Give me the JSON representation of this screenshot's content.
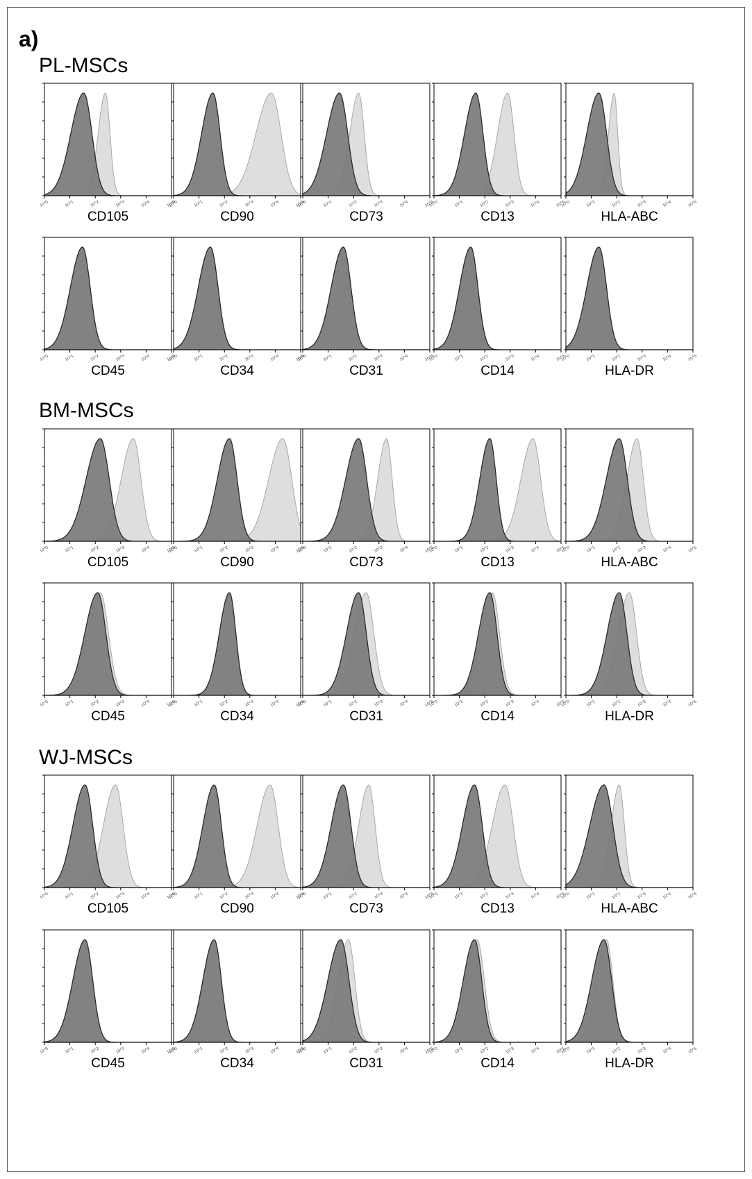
{
  "figure": {
    "panel_label": "a)",
    "tick_labels": [
      "10^0",
      "10^1",
      "10^2",
      "10^3",
      "10^4",
      "10^5"
    ],
    "colors": {
      "isotype": "#7a7a7a",
      "marker": "#dcdcdc",
      "isotype_edge": "#2a2a2a",
      "marker_edge": "#a8a8a8",
      "frame": "#000000"
    }
  },
  "chart_data": [
    {
      "type": "histogram-overlay",
      "group": "PL-MSCs",
      "x_axis": "log10 fluorescence",
      "xlim": [
        0,
        5
      ],
      "rows": [
        [
          {
            "marker": "CD105",
            "isotype_peak": 1.55,
            "isotype_width": 0.32,
            "marker_peak": 2.4,
            "marker_width": 0.18
          },
          {
            "marker": "CD90",
            "isotype_peak": 1.55,
            "isotype_width": 0.28,
            "marker_peak": 3.85,
            "marker_width": 0.38
          },
          {
            "marker": "CD73",
            "isotype_peak": 1.45,
            "isotype_width": 0.32,
            "marker_peak": 2.2,
            "marker_width": 0.22
          },
          {
            "marker": "CD13",
            "isotype_peak": 1.65,
            "isotype_width": 0.28,
            "marker_peak": 2.9,
            "marker_width": 0.25
          },
          {
            "marker": "HLA-ABC",
            "isotype_peak": 1.3,
            "isotype_width": 0.3,
            "marker_peak": 1.9,
            "marker_width": 0.14
          }
        ],
        [
          {
            "marker": "CD45",
            "isotype_peak": 1.5,
            "isotype_width": 0.3,
            "marker_peak": 1.5,
            "marker_width": 0.3
          },
          {
            "marker": "CD34",
            "isotype_peak": 1.45,
            "isotype_width": 0.3,
            "marker_peak": 1.45,
            "marker_width": 0.3
          },
          {
            "marker": "CD31",
            "isotype_peak": 1.6,
            "isotype_width": 0.3,
            "marker_peak": 1.6,
            "marker_width": 0.3
          },
          {
            "marker": "CD14",
            "isotype_peak": 1.45,
            "isotype_width": 0.28,
            "marker_peak": 1.45,
            "marker_width": 0.28
          },
          {
            "marker": "HLA-DR",
            "isotype_peak": 1.3,
            "isotype_width": 0.3,
            "marker_peak": 1.3,
            "marker_width": 0.3
          }
        ]
      ]
    },
    {
      "type": "histogram-overlay",
      "group": "BM-MSCs",
      "x_axis": "log10 fluorescence",
      "xlim": [
        0,
        5
      ],
      "rows": [
        [
          {
            "marker": "CD105",
            "isotype_peak": 2.2,
            "isotype_width": 0.35,
            "marker_peak": 3.5,
            "marker_width": 0.3
          },
          {
            "marker": "CD90",
            "isotype_peak": 2.2,
            "isotype_width": 0.3,
            "marker_peak": 4.3,
            "marker_width": 0.35
          },
          {
            "marker": "CD73",
            "isotype_peak": 2.2,
            "isotype_width": 0.32,
            "marker_peak": 3.3,
            "marker_width": 0.22
          },
          {
            "marker": "CD13",
            "isotype_peak": 2.2,
            "isotype_width": 0.25,
            "marker_peak": 3.9,
            "marker_width": 0.3
          },
          {
            "marker": "HLA-ABC",
            "isotype_peak": 2.1,
            "isotype_width": 0.32,
            "marker_peak": 2.8,
            "marker_width": 0.25
          }
        ],
        [
          {
            "marker": "CD45",
            "isotype_peak": 2.1,
            "isotype_width": 0.32,
            "marker_peak": 2.2,
            "marker_width": 0.32
          },
          {
            "marker": "CD34",
            "isotype_peak": 2.2,
            "isotype_width": 0.25,
            "marker_peak": 2.2,
            "marker_width": 0.25
          },
          {
            "marker": "CD31",
            "isotype_peak": 2.2,
            "isotype_width": 0.3,
            "marker_peak": 2.5,
            "marker_width": 0.3
          },
          {
            "marker": "CD14",
            "isotype_peak": 2.2,
            "isotype_width": 0.28,
            "marker_peak": 2.3,
            "marker_width": 0.28
          },
          {
            "marker": "HLA-DR",
            "isotype_peak": 2.1,
            "isotype_width": 0.3,
            "marker_peak": 2.5,
            "marker_width": 0.28
          }
        ]
      ]
    },
    {
      "type": "histogram-overlay",
      "group": "WJ-MSCs",
      "x_axis": "log10 fluorescence",
      "xlim": [
        0,
        5
      ],
      "rows": [
        [
          {
            "marker": "CD105",
            "isotype_peak": 1.6,
            "isotype_width": 0.3,
            "marker_peak": 2.8,
            "marker_width": 0.3
          },
          {
            "marker": "CD90",
            "isotype_peak": 1.6,
            "isotype_width": 0.28,
            "marker_peak": 3.8,
            "marker_width": 0.32
          },
          {
            "marker": "CD73",
            "isotype_peak": 1.6,
            "isotype_width": 0.3,
            "marker_peak": 2.6,
            "marker_width": 0.25
          },
          {
            "marker": "CD13",
            "isotype_peak": 1.6,
            "isotype_width": 0.3,
            "marker_peak": 2.8,
            "marker_width": 0.32
          },
          {
            "marker": "HLA-ABC",
            "isotype_peak": 1.5,
            "isotype_width": 0.35,
            "marker_peak": 2.1,
            "marker_width": 0.2
          }
        ],
        [
          {
            "marker": "CD45",
            "isotype_peak": 1.6,
            "isotype_width": 0.3,
            "marker_peak": 1.6,
            "marker_width": 0.3
          },
          {
            "marker": "CD34",
            "isotype_peak": 1.6,
            "isotype_width": 0.28,
            "marker_peak": 1.6,
            "marker_width": 0.28
          },
          {
            "marker": "CD31",
            "isotype_peak": 1.5,
            "isotype_width": 0.32,
            "marker_peak": 1.8,
            "marker_width": 0.25
          },
          {
            "marker": "CD14",
            "isotype_peak": 1.6,
            "isotype_width": 0.28,
            "marker_peak": 1.7,
            "marker_width": 0.28
          },
          {
            "marker": "HLA-DR",
            "isotype_peak": 1.5,
            "isotype_width": 0.3,
            "marker_peak": 1.6,
            "marker_width": 0.25
          }
        ]
      ]
    }
  ]
}
